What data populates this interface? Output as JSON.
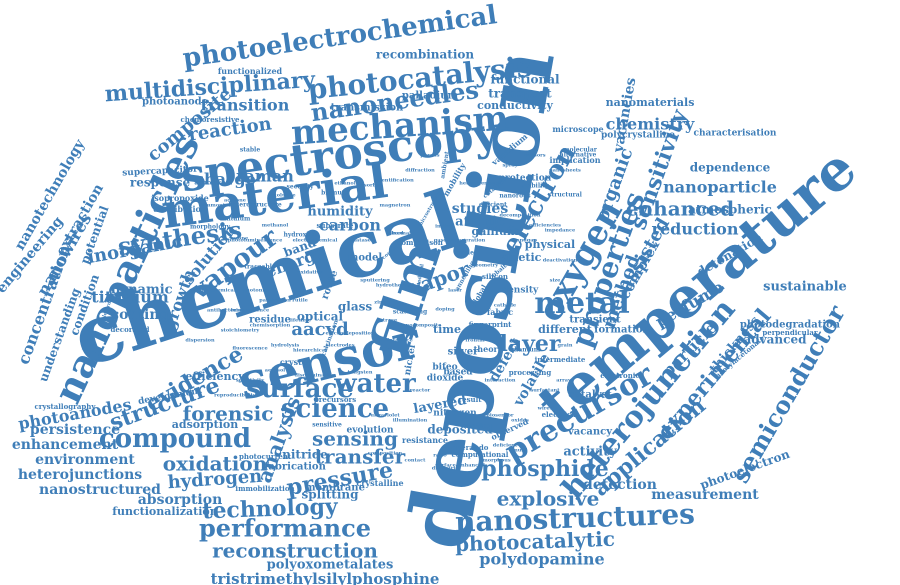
{
  "word_cloud": {
    "color": "#3f7eb8",
    "words": [
      "deposition",
      "chemical",
      "temperature",
      "material",
      "spectroscopy",
      "sensor",
      "film",
      "nanoparticles",
      "mechanism",
      "photoelectrochemical",
      "photocatalysis",
      "nanoneedles",
      "multidisciplinary",
      "vapour",
      "synthesis",
      "properties",
      "oxygen",
      "metal",
      "precursor",
      "heterojunction",
      "semiconductor",
      "experimental",
      "application",
      "surface",
      "water",
      "science",
      "compound",
      "nanostructures",
      "phosphide",
      "explosive",
      "performance",
      "reconstruction",
      "photocatalytic",
      "polydopamine",
      "tristrimethylsilylphosphine",
      "technology",
      "hydrogen",
      "oxidation",
      "pressure",
      "sensing",
      "transfer",
      "forensic",
      "analysis",
      "evidence",
      "structure",
      "photoanodes",
      "persistence",
      "enhancement",
      "environment",
      "heterojunctions",
      "nanostructured",
      "absorption",
      "functionalization",
      "polyoxometalates",
      "reaction",
      "transition",
      "composite",
      "charge",
      "raman",
      "carbon",
      "titanium",
      "growth",
      "coating",
      "dynamic",
      "inorganic",
      "engineering",
      "nanotechnology",
      "concentration",
      "understanding",
      "nanowires",
      "extraction",
      "potential",
      "condition",
      "aacvd",
      "vapor",
      "electron",
      "sensitivity",
      "enhanced",
      "reduction",
      "nanoparticle",
      "dependence",
      "nanomaterials",
      "chemistry",
      "vacancies",
      "organic",
      "assisted",
      "perfume",
      "detonation",
      "atmospheric",
      "sustainable",
      "particle",
      "thickness",
      "advanced",
      "photodegradation",
      "photoelectron",
      "measurement",
      "detection",
      "activity",
      "layer",
      "method",
      "complex",
      "volatile",
      "defect",
      "different",
      "transient",
      "formation",
      "layered",
      "deposited",
      "nitrogen",
      "silver",
      "theory",
      "bifeo",
      "time",
      "based",
      "dioxide",
      "nickel",
      "catalyst",
      "vacancy",
      "splitting",
      "membrane",
      "fabrication",
      "nitride",
      "functional",
      "transport",
      "conductivity",
      "palladium",
      "transmission",
      "recombination",
      "functionalized",
      "photoanode",
      "chemoresistive",
      "supercapacitor",
      "isopropoxide",
      "distribution",
      "response",
      "humidity",
      "studies",
      "atomic",
      "gallium",
      "kinetic",
      "physical",
      "density",
      "band",
      "route",
      "model",
      "energy",
      "solution",
      "optical",
      "glass",
      "residue",
      "crystal",
      "efficiency",
      "adsorption",
      "development",
      "crystallography",
      "resistance",
      "evolution",
      "electrical",
      "computational",
      "observed",
      "crystalline",
      "precursors",
      "photocurrent",
      "immobilization",
      "sensitive",
      "decorated",
      "vanadium",
      "microscope",
      "implication",
      "polycrystalline",
      "characterisation",
      "perpendicular",
      "acetylacetonate",
      "electronic",
      "silicon",
      "processing",
      "intermediate",
      "operando",
      "tantalum",
      "stable",
      "ambient",
      "protection",
      "efficient",
      "mobility",
      "catalytic",
      "substrate",
      "security",
      "approach",
      "comparison",
      "oxide",
      "hydroxide",
      "calcination",
      "fingerprint",
      "cobalt",
      "global",
      "fabric",
      "result",
      "visible",
      "molecular",
      "alternative",
      "morphology",
      "structural",
      "bismuth",
      "modified",
      "quantum",
      "scattering",
      "heterostructure",
      "stability",
      "nanorods",
      "annealing",
      "traceable",
      "doping",
      "trace",
      "interface",
      "ultraviolet",
      "dielectric",
      "electrodes",
      "microstructure",
      "electrolyte",
      "photoluminescence",
      "chemisorption",
      "hierarchical",
      "thermal",
      "frontal",
      "tungsten",
      "zinc",
      "copper",
      "porous",
      "dispersion",
      "fluorescence",
      "laser",
      "biosensor",
      "composition",
      "deficient",
      "oxidative",
      "hydrolysis",
      "photonic",
      "generation",
      "geometry",
      "magnetron",
      "anatase",
      "rutile",
      "aerosol",
      "reactor",
      "bandgap",
      "impedance",
      "surfactant",
      "interaction",
      "hydrothermal",
      "electrochemical",
      "gaseous",
      "indium",
      "cathode",
      "sputtering",
      "electrodeposition",
      "nanocomposite",
      "heterogeneous",
      "spray",
      "sensors",
      "nanosheets",
      "diffraction",
      "identification",
      "adsorbed",
      "ethanol",
      "toluene",
      "acetone",
      "ammonia",
      "methanol",
      "ozone",
      "mixed",
      "illumination",
      "contact",
      "ratio",
      "surface-enhanced",
      "amorphous",
      "multi",
      "oxides",
      "wires",
      "arrays",
      "grain",
      "size",
      "deactivation",
      "efficiencies",
      "decomposition",
      "stoichiometry",
      "antibacterial",
      "photochemical",
      "luminescence",
      "passivation",
      "lifetime",
      "selectivity",
      "reproducibility",
      "discrimination"
    ]
  }
}
